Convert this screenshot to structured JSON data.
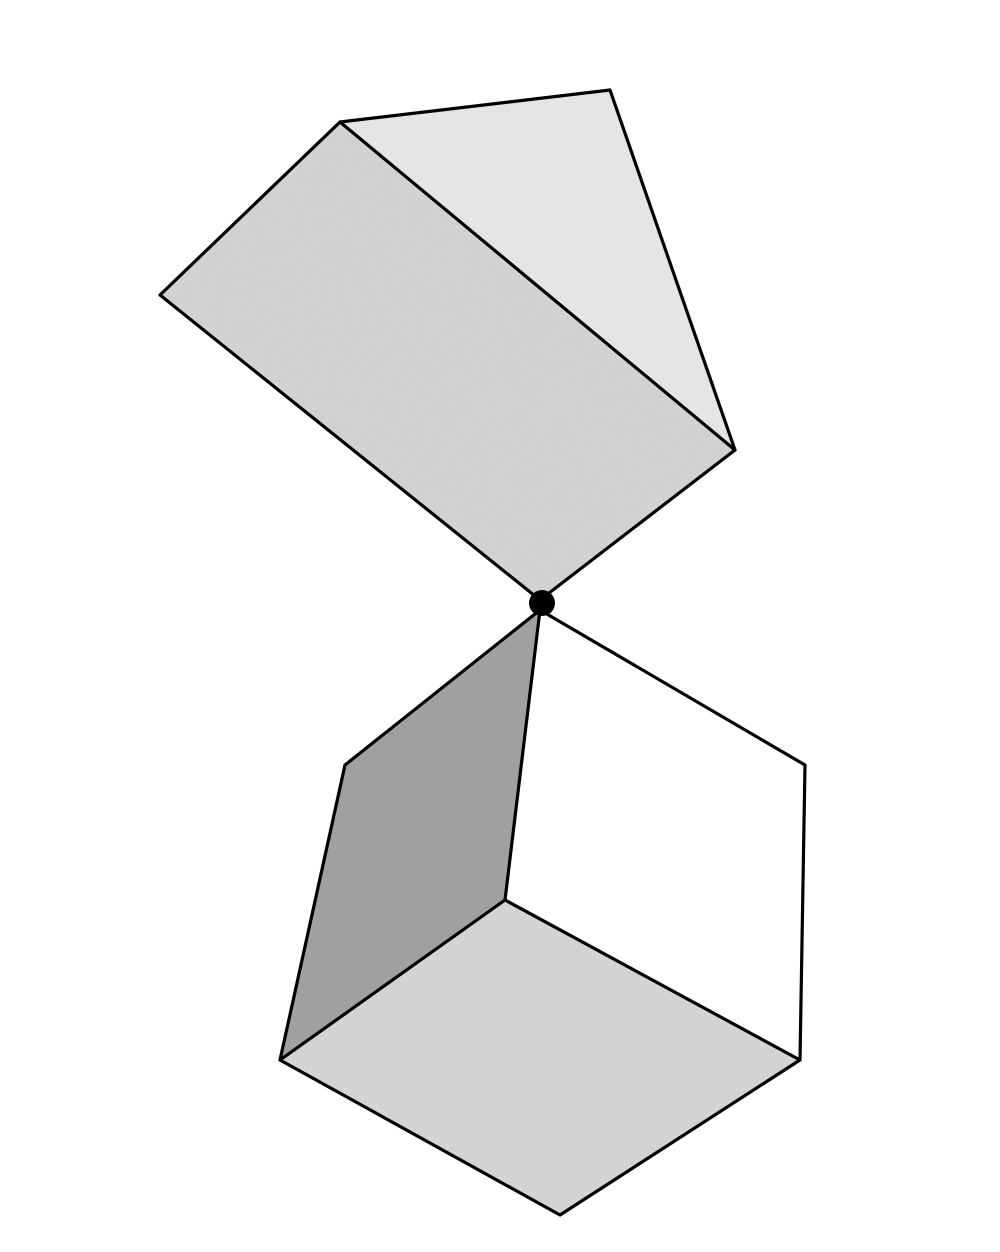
{
  "figure": {
    "description_text": "",
    "colors": {
      "background": "#ffffff",
      "edge": "#000000",
      "prism_front_face": "#d4d4d4",
      "prism_top_face": "#e8e8e8",
      "cube_left_face": "#9e9e9e",
      "cube_right_face": "#ffffff",
      "cube_bottom_face": "#d6d6d6",
      "contact_point": "#000000"
    },
    "shapes": [
      {
        "name": "triangular-prism"
      },
      {
        "name": "cube"
      }
    ]
  }
}
